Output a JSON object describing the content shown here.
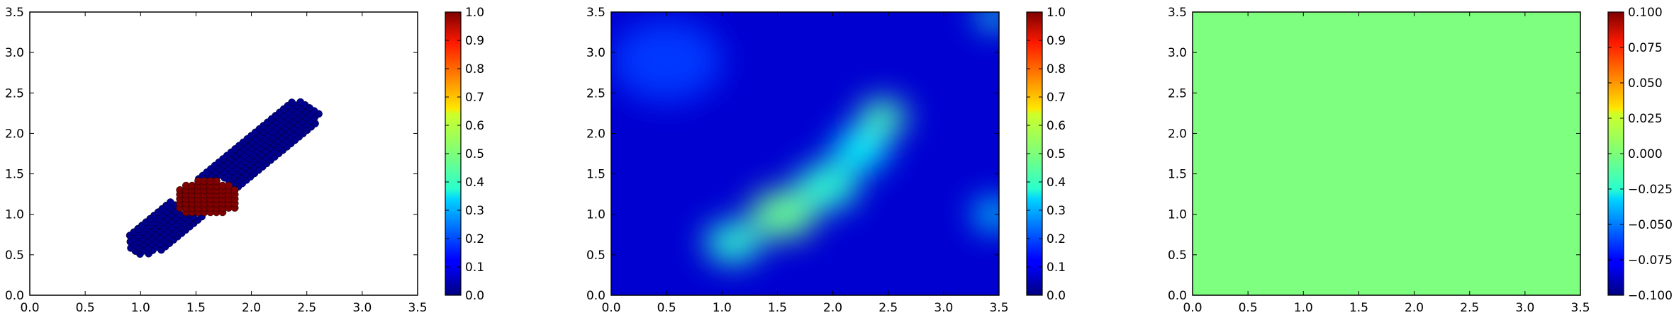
{
  "chart_data": [
    {
      "type": "scatter",
      "description_of_content": "two clusters of points; blue band and red patch",
      "xlim": [
        0.0,
        3.5
      ],
      "ylim": [
        0.0,
        3.5
      ],
      "xticks": [
        "0.0",
        "0.5",
        "1.0",
        "1.5",
        "2.0",
        "2.5",
        "3.0",
        "3.5"
      ],
      "yticks": [
        "0.0",
        "0.5",
        "1.0",
        "1.5",
        "2.0",
        "2.5",
        "3.0",
        "3.5"
      ],
      "grid": false,
      "colormap": "jet",
      "colorbar": {
        "range": [
          0.0,
          1.0
        ],
        "ticks": [
          "0.0",
          "0.1",
          "0.2",
          "0.3",
          "0.4",
          "0.5",
          "0.6",
          "0.7",
          "0.8",
          "0.9",
          "1.0"
        ]
      },
      "band": {
        "value": 0.0,
        "color": "#00008f",
        "start": [
          0.95,
          0.55
        ],
        "end": [
          2.55,
          2.35
        ],
        "half_width": 0.17
      },
      "patch": {
        "value": 1.0,
        "color": "#800000",
        "center": [
          1.6,
          1.2
        ],
        "rx": 0.3,
        "ry": 0.23
      }
    },
    {
      "type": "heatmap",
      "xlim": [
        0.0,
        3.5
      ],
      "ylim": [
        0.0,
        3.5
      ],
      "xticks": [
        "0.0",
        "0.5",
        "1.0",
        "1.5",
        "2.0",
        "2.5",
        "3.0",
        "3.5"
      ],
      "yticks": [
        "0.0",
        "0.5",
        "1.0",
        "1.5",
        "2.0",
        "2.5",
        "3.0",
        "3.5"
      ],
      "colormap": "jet",
      "colorbar": {
        "range": [
          0.0,
          1.0
        ],
        "ticks": [
          "0.0",
          "0.1",
          "0.2",
          "0.3",
          "0.4",
          "0.5",
          "0.6",
          "0.7",
          "0.8",
          "0.9",
          "1.0"
        ]
      },
      "background_value": 0.08,
      "blobs": [
        {
          "x": 1.1,
          "y": 0.65,
          "value": 0.42,
          "spread": 0.25
        },
        {
          "x": 1.55,
          "y": 1.0,
          "value": 0.48,
          "spread": 0.3
        },
        {
          "x": 1.95,
          "y": 1.35,
          "value": 0.42,
          "spread": 0.28
        },
        {
          "x": 2.25,
          "y": 1.8,
          "value": 0.38,
          "spread": 0.25
        },
        {
          "x": 2.45,
          "y": 2.2,
          "value": 0.45,
          "spread": 0.22
        },
        {
          "x": 3.45,
          "y": 1.0,
          "value": 0.35,
          "spread": 0.18
        },
        {
          "x": 3.45,
          "y": 3.45,
          "value": 0.4,
          "spread": 0.15
        },
        {
          "x": 0.5,
          "y": 2.9,
          "value": 0.18,
          "spread": 0.5
        }
      ]
    },
    {
      "type": "heatmap",
      "xlim": [
        0.0,
        3.5
      ],
      "ylim": [
        0.0,
        3.5
      ],
      "xticks": [
        "0.0",
        "0.5",
        "1.0",
        "1.5",
        "2.0",
        "2.5",
        "3.0",
        "3.5"
      ],
      "yticks": [
        "0.0",
        "0.5",
        "1.0",
        "1.5",
        "2.0",
        "2.5",
        "3.0",
        "3.5"
      ],
      "colormap": "jet",
      "uniform_value": 0.0,
      "fill_color": "#7fff7f",
      "colorbar": {
        "range": [
          -0.1,
          0.1
        ],
        "ticks": [
          "−0.100",
          "−0.075",
          "−0.050",
          "−0.025",
          "0.000",
          "0.025",
          "0.050",
          "0.075",
          "0.100"
        ]
      }
    }
  ]
}
